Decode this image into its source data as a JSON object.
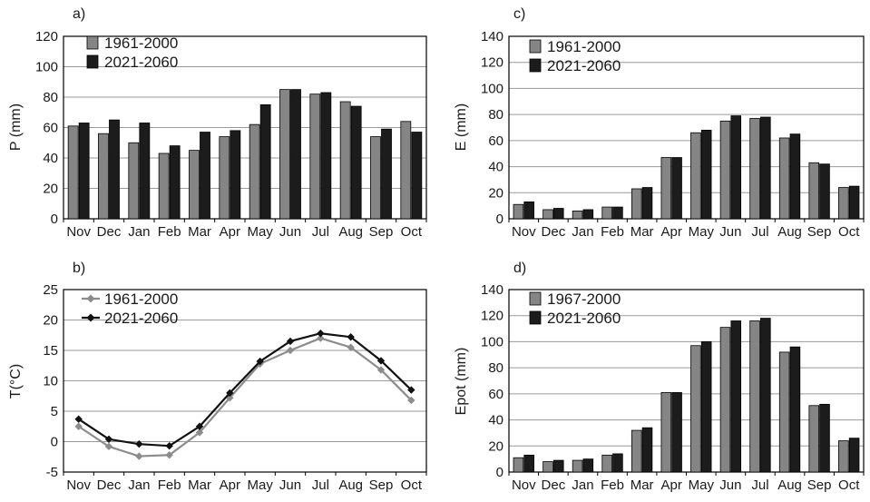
{
  "colors": {
    "gray_bar": "#858585",
    "black_bar": "#1c1c1c",
    "gray_line": "#8c8c8c",
    "black_line": "#111111",
    "grid": "#9a9a9a",
    "axis": "#000000"
  },
  "chart_data": [
    {
      "type": "bar",
      "panel_label": "a)",
      "ylabel": "P (mm)",
      "xlabel": "",
      "ylim": [
        0,
        120
      ],
      "yticks": [
        "0",
        "20",
        "40",
        "60",
        "80",
        "100",
        "120"
      ],
      "categories": [
        "Nov",
        "Dec",
        "Jan",
        "Feb",
        "Mar",
        "Apr",
        "May",
        "Jun",
        "Jul",
        "Aug",
        "Sep",
        "Oct"
      ],
      "grid": true,
      "legend_position": "top-left",
      "series": [
        {
          "name": "1961-2000",
          "color_key": "gray_bar",
          "values": [
            61,
            56,
            50,
            43,
            45,
            54,
            62,
            85,
            82,
            77,
            54,
            64
          ]
        },
        {
          "name": "2021-2060",
          "color_key": "black_bar",
          "values": [
            63,
            65,
            63,
            48,
            57,
            58,
            75,
            85,
            83,
            74,
            59,
            57
          ]
        }
      ]
    },
    {
      "type": "line",
      "panel_label": "b)",
      "ylabel": "T(°C)",
      "xlabel": "",
      "ylim": [
        -5,
        25
      ],
      "yticks": [
        "-5",
        "0",
        "5",
        "10",
        "15",
        "20",
        "25"
      ],
      "categories": [
        "Nov",
        "Dec",
        "Jan",
        "Feb",
        "Mar",
        "Apr",
        "May",
        "Jun",
        "Jul",
        "Aug",
        "Sep",
        "Oct"
      ],
      "grid": true,
      "legend_position": "top-left",
      "series": [
        {
          "name": "1961-2000",
          "color_key": "gray_line",
          "values": [
            2.5,
            -0.8,
            -2.4,
            -2.2,
            1.5,
            7.2,
            12.8,
            15.0,
            17.0,
            15.5,
            11.8,
            6.8
          ]
        },
        {
          "name": "2021-2060",
          "color_key": "black_line",
          "values": [
            3.7,
            0.4,
            -0.4,
            -0.7,
            2.5,
            8.0,
            13.2,
            16.5,
            17.8,
            17.2,
            13.3,
            8.5
          ]
        }
      ]
    },
    {
      "type": "bar",
      "panel_label": "c)",
      "ylabel": "E (mm)",
      "xlabel": "",
      "ylim": [
        0,
        140
      ],
      "yticks": [
        "0",
        "20",
        "40",
        "60",
        "80",
        "100",
        "120",
        "140"
      ],
      "categories": [
        "Nov",
        "Dec",
        "Jan",
        "Feb",
        "Mar",
        "Apr",
        "May",
        "Jun",
        "Jul",
        "Aug",
        "Sep",
        "Oct"
      ],
      "grid": true,
      "legend_position": "top-left",
      "series": [
        {
          "name": "1961-2000",
          "color_key": "gray_bar",
          "values": [
            11,
            7,
            6,
            9,
            23,
            47,
            66,
            75,
            77,
            62,
            43,
            24
          ]
        },
        {
          "name": "2021-2060",
          "color_key": "black_bar",
          "values": [
            13,
            8,
            7,
            9,
            24,
            47,
            68,
            79,
            78,
            65,
            42,
            25
          ]
        }
      ]
    },
    {
      "type": "bar",
      "panel_label": "d)",
      "ylabel": "Epot (mm)",
      "xlabel": "",
      "ylim": [
        0,
        140
      ],
      "yticks": [
        "0",
        "20",
        "40",
        "60",
        "80",
        "100",
        "120",
        "140"
      ],
      "categories": [
        "Nov",
        "Dec",
        "Jan",
        "Feb",
        "Mar",
        "Apr",
        "May",
        "Jun",
        "Jul",
        "Aug",
        "Sep",
        "Oct"
      ],
      "grid": true,
      "legend_position": "top-left",
      "series": [
        {
          "name": "1967-2000",
          "color_key": "gray_bar",
          "values": [
            11,
            8,
            9,
            13,
            32,
            61,
            97,
            111,
            116,
            92,
            51,
            24
          ]
        },
        {
          "name": "2021-2060",
          "color_key": "black_bar",
          "values": [
            13,
            9,
            10,
            14,
            34,
            61,
            100,
            116,
            118,
            96,
            52,
            26
          ]
        }
      ]
    }
  ]
}
